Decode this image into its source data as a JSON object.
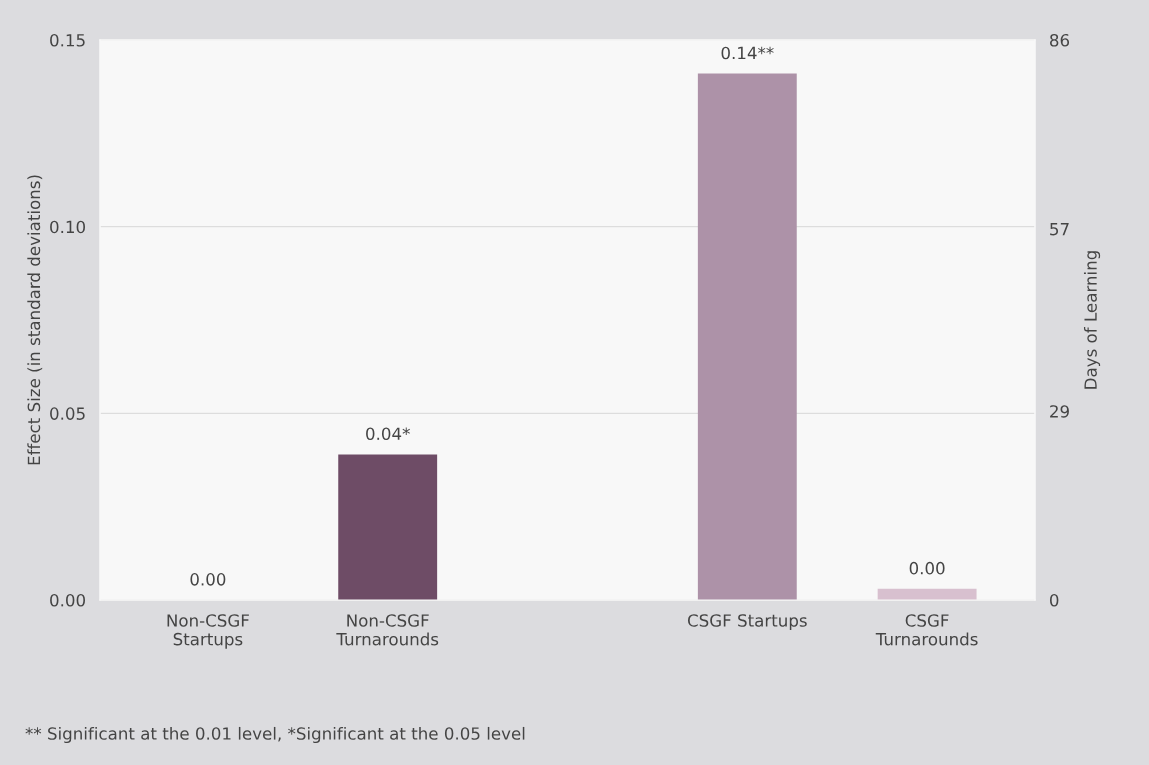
{
  "chart_data": {
    "type": "bar",
    "categories": [
      "Non-CSGF\nStartups",
      "Non-CSGF\nTurnarounds",
      null,
      "CSGF Startups",
      "CSGF\nTurnarounds"
    ],
    "values": [
      0.0,
      0.039,
      null,
      0.141,
      0.003
    ],
    "colors": [
      "#6e4c66",
      "#6e4c66",
      null,
      "#ad92a8",
      "#d8c0cf"
    ],
    "value_labels": [
      "0.00",
      "0.04*",
      null,
      "0.14**",
      "0.00"
    ],
    "ylabel": "Effect Size (in standard deviations)",
    "y2label": "Days of Learning",
    "ylim": [
      0,
      0.15
    ],
    "yticks": [
      {
        "value": 0,
        "label": "0.00"
      },
      {
        "value": 0.05,
        "label": "0.05"
      },
      {
        "value": 0.1,
        "label": "0.10"
      },
      {
        "value": 0.15,
        "label": "0.15"
      }
    ],
    "y2lim": [
      0,
      86
    ],
    "y2ticks": [
      0,
      29,
      57,
      86
    ],
    "grid": "y",
    "legend": false,
    "annotations": [
      "** Significant at the 0.01 level, *Significant at the 0.05 level"
    ]
  }
}
